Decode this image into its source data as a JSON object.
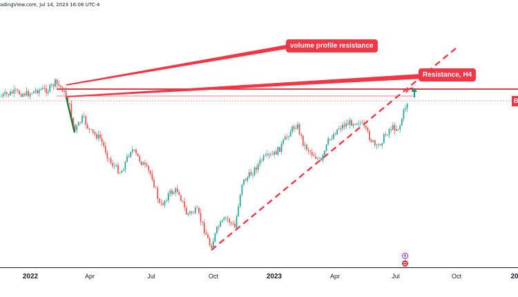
{
  "header": {
    "text": "adingView.com, Jul 14, 2023 16:06 UTC-4"
  },
  "annotations": {
    "volume_profile_resistance": "volume profile resistance",
    "resistance_h4": "Resistance, H4",
    "price_tag": "B"
  },
  "x_axis": {
    "labels": [
      "2022",
      "Apr",
      "Jul",
      "Oct",
      "2023",
      "Apr",
      "Jul",
      "Oct",
      "20"
    ]
  },
  "colors": {
    "bull": "#26a69a",
    "bear": "#ef5350",
    "annotation": "#f23645",
    "arrow_up": "#089981",
    "trendline": "#f23645"
  },
  "icons": {
    "lightning": "lightning-icon",
    "flag": "us-flag-icon"
  },
  "chart_data": {
    "type": "candlestick",
    "x": [
      "2022",
      "Apr",
      "Jul",
      "Oct",
      "2023",
      "Apr",
      "Jul",
      "Oct",
      "20"
    ],
    "grid": false
  }
}
